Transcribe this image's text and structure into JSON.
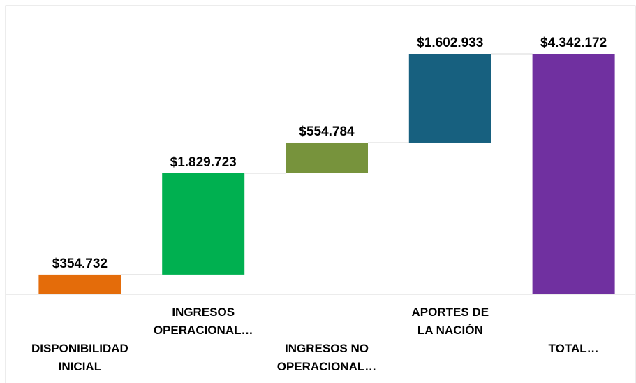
{
  "chart_data": {
    "type": "waterfall",
    "categories": [
      "DISPONIBILIDAD\nINICIAL",
      "INGRESOS\nOPERACIONAL…",
      "INGRESOS NO\nOPERACIONAL…",
      "APORTES DE\nLA NACIÓN",
      "TOTAL…"
    ],
    "values": [
      354732,
      1829723,
      554784,
      1602933,
      4342172
    ],
    "value_labels": [
      "$354.732",
      "$1.829.723",
      "$554.784",
      "$1.602.933",
      "$4.342.172"
    ],
    "measures": [
      "relative",
      "relative",
      "relative",
      "relative",
      "total"
    ],
    "colors": [
      "#e46c0a",
      "#00b050",
      "#77933c",
      "#17607f",
      "#7030a0"
    ]
  }
}
